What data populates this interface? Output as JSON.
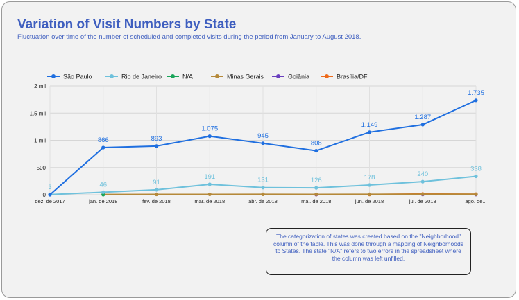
{
  "header": {
    "title": "Variation of Visit Numbers by State",
    "subtitle": "Fluctuation over time of the number of scheduled and completed visits during the period from January to August 2018."
  },
  "note": "The categorization of states was created based on the \"Neighborhood\" column of the table. This was done through a mapping of Neighborhoods to States. The state \"N/A\" refers to two errors in the spreadsheet where the column was left unfilled.",
  "chart_data": {
    "type": "line",
    "categories": [
      "dez. de 2017",
      "jan. de 2018",
      "fev. de 2018",
      "mar. de 2018",
      "abr. de 2018",
      "mai. de 2018",
      "jun. de 2018",
      "jul. de 2018",
      "ago. de..."
    ],
    "ylim": [
      0,
      2000
    ],
    "yticks": [
      {
        "value": 0,
        "label": "0"
      },
      {
        "value": 500,
        "label": "500"
      },
      {
        "value": 1000,
        "label": "1 mil"
      },
      {
        "value": 1500,
        "label": "1,5 mil"
      },
      {
        "value": 2000,
        "label": "2 mil"
      }
    ],
    "grid": true,
    "legend_position": "top-left",
    "series": [
      {
        "name": "São Paulo",
        "color": "#1f6fe0",
        "values": [
          0,
          866,
          893,
          1075,
          945,
          808,
          1149,
          1287,
          1735
        ],
        "labels": [
          "",
          "866",
          "893",
          "1.075",
          "945",
          "808",
          "1.149",
          "1.287",
          "1.735"
        ]
      },
      {
        "name": "Rio de Janeiro",
        "color": "#6ec1dc",
        "values": [
          3,
          46,
          91,
          191,
          131,
          126,
          178,
          240,
          338
        ],
        "labels": [
          "3",
          "46",
          "91",
          "191",
          "131",
          "126",
          "178",
          "240",
          "338"
        ]
      },
      {
        "name": "N/A",
        "color": "#1aa55a",
        "values": [
          null,
          1,
          null,
          null,
          null,
          null,
          null,
          null,
          null
        ],
        "labels": []
      },
      {
        "name": "Minas Gerais",
        "color": "#b5893a",
        "values": [
          null,
          5,
          6,
          7,
          8,
          7,
          8,
          10,
          9
        ],
        "labels": []
      },
      {
        "name": "Goiânia",
        "color": "#6a3fbf",
        "values": [
          null,
          null,
          null,
          null,
          null,
          2,
          null,
          4,
          3
        ],
        "labels": []
      },
      {
        "name": "Brasília/DF",
        "color": "#ee6a1a",
        "values": [
          null,
          null,
          null,
          null,
          null,
          2,
          4,
          14,
          10
        ],
        "labels": []
      }
    ]
  }
}
